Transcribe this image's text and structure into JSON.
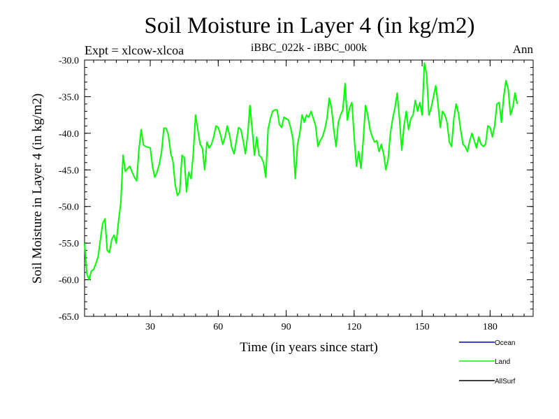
{
  "chart_data": {
    "type": "line",
    "title": "Soil Moisture in Layer 4 (in kg/m2)",
    "subtitle_left": "Expt = xlcow-xlcoa",
    "subtitle_center": "iBBC_022k - iBBC_000k",
    "subtitle_right": "Ann",
    "xlabel": "Time (in years since start)",
    "ylabel": "Soil Moisture in Layer 4 (in kg/m2)",
    "xlim": [
      1,
      199
    ],
    "ylim": [
      -65,
      -30
    ],
    "xticks": [
      30,
      60,
      90,
      120,
      150,
      180
    ],
    "yticks": [
      -65,
      -60,
      -55,
      -50,
      -45,
      -40,
      -35,
      -30
    ],
    "ytick_labels": [
      "-65.0",
      "-60.0",
      "-55.0",
      "-50.0",
      "-45.0",
      "-40.0",
      "-35.0",
      "-30.0"
    ],
    "colors": {
      "ocean": "#0000cc",
      "land": "#00ff00",
      "allsurf": "#000000"
    },
    "legend": [
      {
        "name": "Ocean",
        "color": "#0000cc"
      },
      {
        "name": "Land",
        "color": "#00ff00"
      },
      {
        "name": "AllSurf",
        "color": "#000000"
      }
    ],
    "series": [
      {
        "name": "Land",
        "color": "#00ff00",
        "x_start": 1,
        "x_step": 1,
        "values": [
          -55.0,
          -59.2,
          -60.0,
          -58.8,
          -58.6,
          -57.8,
          -56.8,
          -54.5,
          -52.3,
          -51.7,
          -56.0,
          -56.3,
          -54.5,
          -53.9,
          -55.0,
          -52.0,
          -49.5,
          -43.0,
          -45.2,
          -44.8,
          -44.5,
          -45.3,
          -46.0,
          -46.5,
          -42.2,
          -39.5,
          -41.6,
          -41.8,
          -41.9,
          -42.0,
          -44.5,
          -46.0,
          -45.3,
          -44.2,
          -42.5,
          -39.3,
          -39.3,
          -40.2,
          -42.7,
          -43.8,
          -47.0,
          -48.5,
          -48.0,
          -43.0,
          -43.3,
          -48.0,
          -45.3,
          -46.2,
          -42.7,
          -37.5,
          -39.5,
          -41.5,
          -42.0,
          -45.0,
          -41.2,
          -42.0,
          -41.5,
          -40.5,
          -39.0,
          -39.2,
          -40.2,
          -41.5,
          -40.5,
          -39.0,
          -40.2,
          -42.0,
          -42.8,
          -41.0,
          -39.2,
          -39.5,
          -41.0,
          -42.8,
          -40.2,
          -36.2,
          -39.5,
          -43.0,
          -40.5,
          -43.0,
          -43.3,
          -44.0,
          -46.0,
          -39.5,
          -38.0,
          -37.0,
          -36.8,
          -36.8,
          -38.8,
          -39.2,
          -37.8,
          -38.0,
          -38.2,
          -39.3,
          -40.8,
          -46.2,
          -41.5,
          -40.0,
          -37.5,
          -38.5,
          -37.5,
          -37.8,
          -37.0,
          -38.0,
          -39.0,
          -41.8,
          -41.0,
          -40.5,
          -39.5,
          -38.0,
          -35.2,
          -36.5,
          -39.5,
          -41.8,
          -38.5,
          -37.5,
          -36.8,
          -33.2,
          -38.2,
          -36.5,
          -35.8,
          -40.5,
          -44.5,
          -42.5,
          -44.8,
          -41.0,
          -36.2,
          -37.5,
          -39.5,
          -40.5,
          -41.2,
          -41.0,
          -42.5,
          -41.5,
          -42.8,
          -45.0,
          -43.5,
          -40.0,
          -38.0,
          -36.5,
          -34.5,
          -38.0,
          -42.3,
          -39.0,
          -37.0,
          -39.5,
          -38.0,
          -37.5,
          -35.5,
          -37.0,
          -35.8,
          -37.5,
          -30.4,
          -32.0,
          -37.5,
          -36.5,
          -35.0,
          -33.5,
          -36.0,
          -39.2,
          -37.0,
          -37.5,
          -38.5,
          -41.2,
          -41.8,
          -38.0,
          -36.0,
          -37.2,
          -39.5,
          -41.5,
          -41.8,
          -42.5,
          -41.0,
          -40.0,
          -41.0,
          -42.0,
          -40.5,
          -41.5,
          -41.8,
          -41.5,
          -39.0,
          -39.2,
          -40.5,
          -39.0,
          -36.0,
          -35.8,
          -38.5,
          -35.0,
          -32.8,
          -34.0,
          -37.5,
          -36.5,
          -34.5,
          -36.0
        ]
      }
    ]
  }
}
